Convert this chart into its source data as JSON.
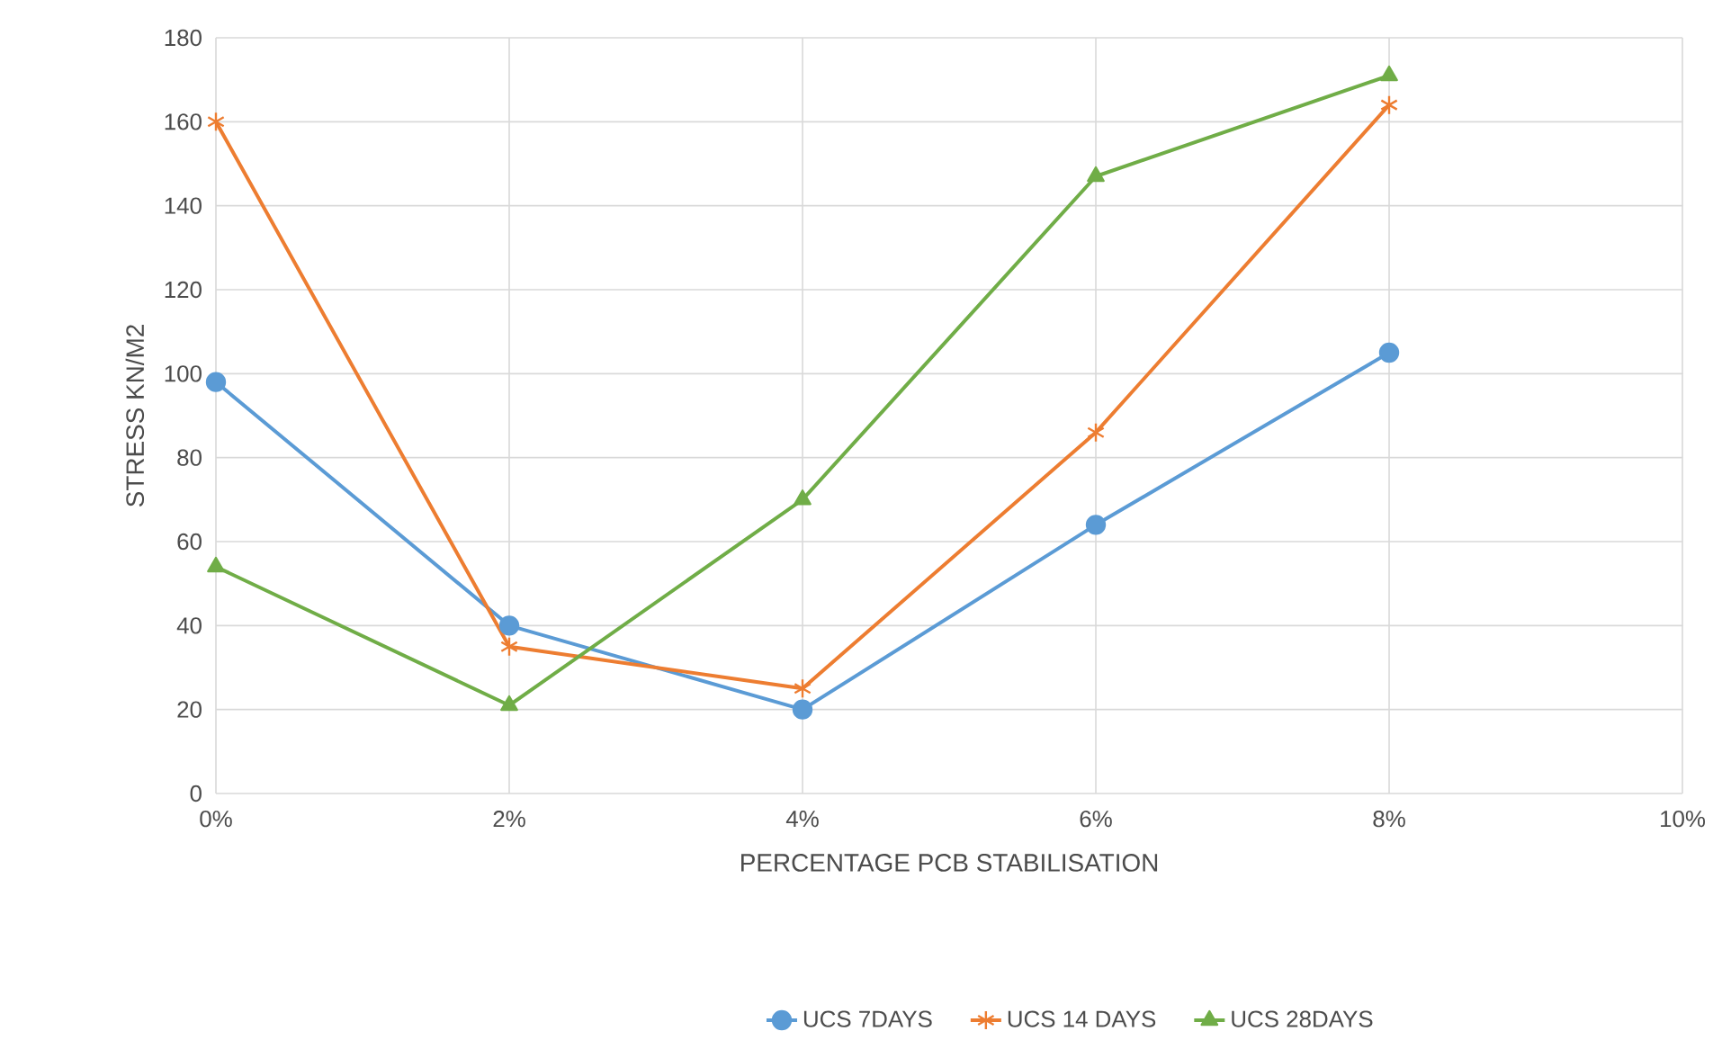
{
  "chart_data": {
    "type": "line",
    "xlabel": "PERCENTAGE PCB STABILISATION",
    "ylabel": "STRESS KN/M2",
    "x": [
      0,
      2,
      4,
      6,
      8
    ],
    "xlim": [
      0,
      10
    ],
    "xticks": [
      {
        "value": 0,
        "label": "0%"
      },
      {
        "value": 2,
        "label": "2%"
      },
      {
        "value": 4,
        "label": "4%"
      },
      {
        "value": 6,
        "label": "6%"
      },
      {
        "value": 8,
        "label": "8%"
      },
      {
        "value": 10,
        "label": "10%"
      }
    ],
    "ylim": [
      0,
      180
    ],
    "yticks": [
      0,
      20,
      40,
      60,
      80,
      100,
      120,
      140,
      160,
      180
    ],
    "grid": true,
    "legend": "bottom",
    "line_style": "solid",
    "series": [
      {
        "name": "UCS 7DAYS",
        "color": "#5b9bd5",
        "marker": "circle",
        "values": [
          98,
          40,
          20,
          64,
          105
        ]
      },
      {
        "name": "UCS 14 DAYS",
        "color": "#ed7d31",
        "marker": "cross",
        "values": [
          160,
          35,
          25,
          86,
          164
        ]
      },
      {
        "name": "UCS 28DAYS",
        "color": "#70ad47",
        "marker": "triangle",
        "values": [
          54,
          21,
          70,
          147,
          171
        ]
      }
    ]
  }
}
